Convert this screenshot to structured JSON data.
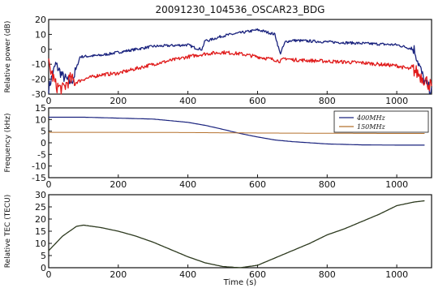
{
  "figure_title": "20091230_104536_OSCAR23_BDG",
  "colors": {
    "series_400": "#1a237e",
    "series_150": "#e01b1b",
    "freq_150": "#b5722f",
    "tec": "#2d3a1f",
    "axis": "#111111"
  },
  "chart_data": [
    {
      "type": "line",
      "title": "",
      "xlabel": "",
      "ylabel": "Relative power (dB)",
      "xlim": [
        0,
        1100
      ],
      "ylim": [
        -30,
        20
      ],
      "xticks": [
        "0",
        "200",
        "400",
        "600",
        "800",
        "1000"
      ],
      "yticks": [
        "-30",
        "-20",
        "-10",
        "0",
        "10",
        "20"
      ],
      "series": [
        {
          "x": [
            0,
            20,
            40,
            60,
            70,
            90,
            150,
            200,
            300,
            400,
            420,
            440,
            450,
            460,
            500,
            550,
            600,
            620,
            650,
            665,
            680,
            700,
            800,
            900,
            1000,
            1050,
            1080,
            1100
          ],
          "y": [
            -26,
            -10,
            -18,
            -22,
            -20,
            -5,
            -4,
            -2,
            2,
            3,
            1,
            0,
            6,
            6,
            9,
            11,
            13,
            12,
            10,
            -3,
            5,
            6,
            5,
            4,
            3,
            0,
            -22,
            -28
          ]
        },
        {
          "x": [
            0,
            20,
            40,
            60,
            80,
            100,
            150,
            200,
            300,
            400,
            450,
            500,
            550,
            600,
            650,
            665,
            680,
            700,
            800,
            900,
            1000,
            1050,
            1080,
            1100
          ],
          "y": [
            -10,
            -24,
            -27,
            -20,
            -22,
            -20,
            -17,
            -16,
            -10,
            -5,
            -3,
            -2,
            -3,
            -5,
            -7,
            -8,
            -6,
            -7,
            -8,
            -9,
            -11,
            -14,
            -20,
            -25
          ]
        }
      ]
    },
    {
      "type": "line",
      "title": "",
      "xlabel": "",
      "ylabel": "Frequency (kHz)",
      "xlim": [
        0,
        1100
      ],
      "ylim": [
        -15,
        15
      ],
      "xticks": [
        "0",
        "200",
        "400",
        "600",
        "800",
        "1000"
      ],
      "yticks": [
        "-15",
        "-10",
        "-5",
        "0",
        "5",
        "10",
        "15"
      ],
      "legend": "top-right",
      "series": [
        {
          "name": "400MHz",
          "x": [
            0,
            100,
            200,
            300,
            400,
            450,
            500,
            550,
            600,
            650,
            700,
            800,
            900,
            1000,
            1080
          ],
          "y": [
            11,
            11,
            10.6,
            10.2,
            8.8,
            7.5,
            5.8,
            4,
            2.5,
            1.2,
            0.5,
            -0.5,
            -0.9,
            -1,
            -1
          ]
        },
        {
          "name": "150MHz",
          "x": [
            0,
            200,
            400,
            600,
            800,
            1000,
            1080
          ],
          "y": [
            4.5,
            4.5,
            4.4,
            4.2,
            4.1,
            4.0,
            4.0
          ]
        }
      ]
    },
    {
      "type": "line",
      "title": "",
      "xlabel": "Time (s)",
      "ylabel": "Relative TEC (TECU)",
      "xlim": [
        0,
        1100
      ],
      "ylim": [
        0,
        30
      ],
      "xticks": [
        "0",
        "200",
        "400",
        "600",
        "800",
        "1000"
      ],
      "yticks": [
        "0",
        "5",
        "10",
        "15",
        "20",
        "25",
        "30"
      ],
      "series": [
        {
          "x": [
            0,
            20,
            40,
            60,
            80,
            100,
            150,
            200,
            250,
            300,
            350,
            400,
            450,
            500,
            550,
            600,
            650,
            700,
            750,
            800,
            850,
            900,
            950,
            1000,
            1050,
            1080
          ],
          "y": [
            7,
            10,
            13,
            15,
            17,
            17.5,
            16.5,
            15,
            13,
            10.5,
            7.5,
            4.5,
            2,
            0.5,
            0,
            1,
            4,
            7,
            10,
            13.5,
            16,
            19,
            22,
            25.5,
            27,
            27.5
          ]
        }
      ]
    }
  ]
}
